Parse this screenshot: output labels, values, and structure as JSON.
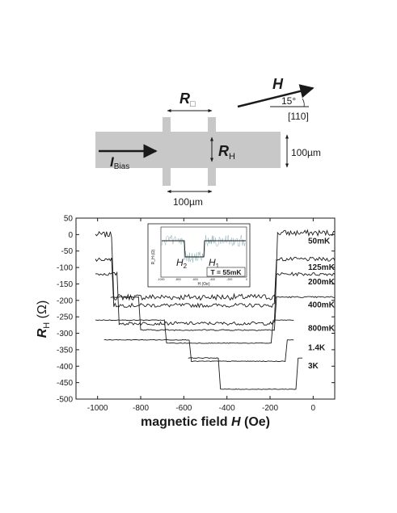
{
  "schematic": {
    "r_square_letter": "R",
    "r_square_sub": "□",
    "field_letter": "H",
    "angle_label": "15°",
    "direction_label": "[110]",
    "rh_letter": "R",
    "rh_sub": "H",
    "bias_letter": "I",
    "bias_sub": "Bias",
    "width_label": "100µm",
    "spacing_label": "100µm"
  },
  "chart_data": {
    "type": "line",
    "xlabel_prefix": "magnetic field ",
    "xlabel_var": "H",
    "xlabel_unit": " (Oe)",
    "ylabel_letter": "R",
    "ylabel_sub": "H",
    "ylabel_unit": " (Ω)",
    "xlim": [
      -1100,
      100
    ],
    "ylim": [
      -500,
      50
    ],
    "xticks": [
      -1000,
      -800,
      -600,
      -400,
      -200,
      0
    ],
    "yticks": [
      50,
      0,
      -50,
      -100,
      -150,
      -200,
      -250,
      -300,
      -350,
      -400,
      -450,
      -500
    ],
    "series": [
      {
        "name": "50mK",
        "noise": 9,
        "x": [
          -1010,
          -935,
          -925,
          -175,
          -165,
          100
        ],
        "y": [
          0,
          0,
          -190,
          -190,
          5,
          5
        ]
      },
      {
        "name": "125mK",
        "noise": 6,
        "x": [
          -1010,
          -935,
          -925,
          -180,
          -170,
          100
        ],
        "y": [
          -75,
          -75,
          -215,
          -215,
          -75,
          -75
        ]
      },
      {
        "name": "200mK",
        "noise": 5,
        "x": [
          -1010,
          -910,
          -900,
          -180,
          -170,
          100
        ],
        "y": [
          -120,
          -120,
          -270,
          -270,
          -120,
          -120
        ]
      },
      {
        "name": "400mK",
        "noise": 2,
        "x": [
          -940,
          -810,
          -800,
          -180,
          -170,
          100
        ],
        "y": [
          -190,
          -190,
          -290,
          -290,
          -190,
          -190
        ]
      },
      {
        "name": "800mK",
        "noise": 1,
        "x": [
          -1010,
          -690,
          -680,
          -195,
          -185,
          -90
        ],
        "y": [
          -260,
          -260,
          -330,
          -330,
          -260,
          -260
        ]
      },
      {
        "name": "1.4K",
        "noise": 1,
        "x": [
          -970,
          -575,
          -565,
          -130,
          -120,
          -90
        ],
        "y": [
          -320,
          -320,
          -385,
          -385,
          -320,
          -320
        ]
      },
      {
        "name": "3K",
        "noise": 1,
        "x": [
          -580,
          -440,
          -430,
          -80,
          -70,
          -50
        ],
        "y": [
          -375,
          -375,
          -470,
          -470,
          -375,
          -375
        ]
      }
    ],
    "inset": {
      "ylabel": "R_H (Ω)",
      "xlabel": "H (Oe)",
      "xticks": [
        "-1000",
        "-800",
        "-600",
        "-400",
        "-200",
        "0"
      ],
      "h2_letter": "H",
      "h2_sub": "2",
      "h1_letter": "H",
      "h1_sub": "1",
      "temperature": "T = 55mK"
    }
  }
}
